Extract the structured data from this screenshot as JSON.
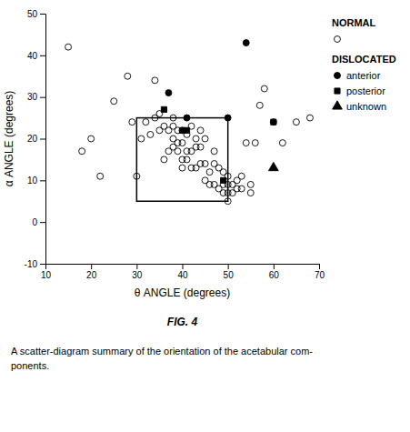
{
  "chart_data": {
    "type": "scatter",
    "xlabel": "θ  ANGLE  (degrees)",
    "ylabel": "α  ANGLE  (degrees)",
    "xlim": [
      10,
      70
    ],
    "ylim": [
      -10,
      50
    ],
    "xticks": [
      10,
      20,
      30,
      40,
      50,
      60,
      70
    ],
    "yticks": [
      -10,
      0,
      10,
      20,
      30,
      40,
      50
    ],
    "legend_group_title": "DISLOCATED",
    "annotations": [
      "FIG. 4"
    ],
    "caption": [
      "A scatter-diagram summary of the orientation of the acetabular com-",
      "ponents."
    ],
    "series": [
      {
        "name": "NORMAL",
        "color": "black",
        "marker": "circle-open",
        "x": [
          15,
          18,
          20,
          22,
          25,
          28,
          29,
          30,
          31,
          32,
          33,
          34,
          34,
          35,
          35,
          36,
          36,
          37,
          37,
          38,
          38,
          38,
          38,
          39,
          39,
          39,
          40,
          40,
          40,
          40,
          41,
          41,
          41,
          42,
          42,
          42,
          43,
          43,
          43,
          44,
          44,
          44,
          45,
          45,
          45,
          46,
          46,
          47,
          47,
          47,
          48,
          48,
          49,
          49,
          49,
          50,
          50,
          50,
          50,
          51,
          51,
          52,
          52,
          53,
          53,
          54,
          55,
          55,
          56,
          57,
          58,
          60,
          62,
          65,
          68
        ],
        "y": [
          42,
          17,
          20,
          11,
          29,
          35,
          24,
          11,
          20,
          24,
          21,
          25,
          34,
          22,
          26,
          23,
          15,
          17,
          22,
          18,
          20,
          23,
          25,
          17,
          19,
          22,
          13,
          15,
          19,
          22,
          15,
          17,
          21,
          13,
          17,
          23,
          13,
          18,
          20,
          14,
          18,
          22,
          10,
          14,
          20,
          9,
          12,
          9,
          14,
          17,
          8,
          13,
          7,
          9,
          12,
          5,
          7,
          9,
          11,
          7,
          9,
          8,
          10,
          8,
          11,
          19,
          7,
          9,
          19,
          28,
          32,
          24,
          19,
          24,
          25
        ]
      },
      {
        "name": "anterior",
        "color": "black",
        "marker": "circle",
        "x": [
          37,
          41,
          50,
          54
        ],
        "y": [
          31,
          25,
          25,
          43
        ]
      },
      {
        "name": "posterior",
        "color": "black",
        "marker": "square",
        "x": [
          36,
          40,
          41,
          49,
          60
        ],
        "y": [
          27,
          22,
          22,
          10,
          24
        ]
      },
      {
        "name": "unknown",
        "color": "black",
        "marker": "triangle",
        "x": [
          60
        ],
        "y": [
          13
        ]
      }
    ],
    "shapes": [
      {
        "type": "rect",
        "x": 30,
        "y": 5,
        "width": 20,
        "height": 20,
        "color": "black"
      }
    ]
  }
}
